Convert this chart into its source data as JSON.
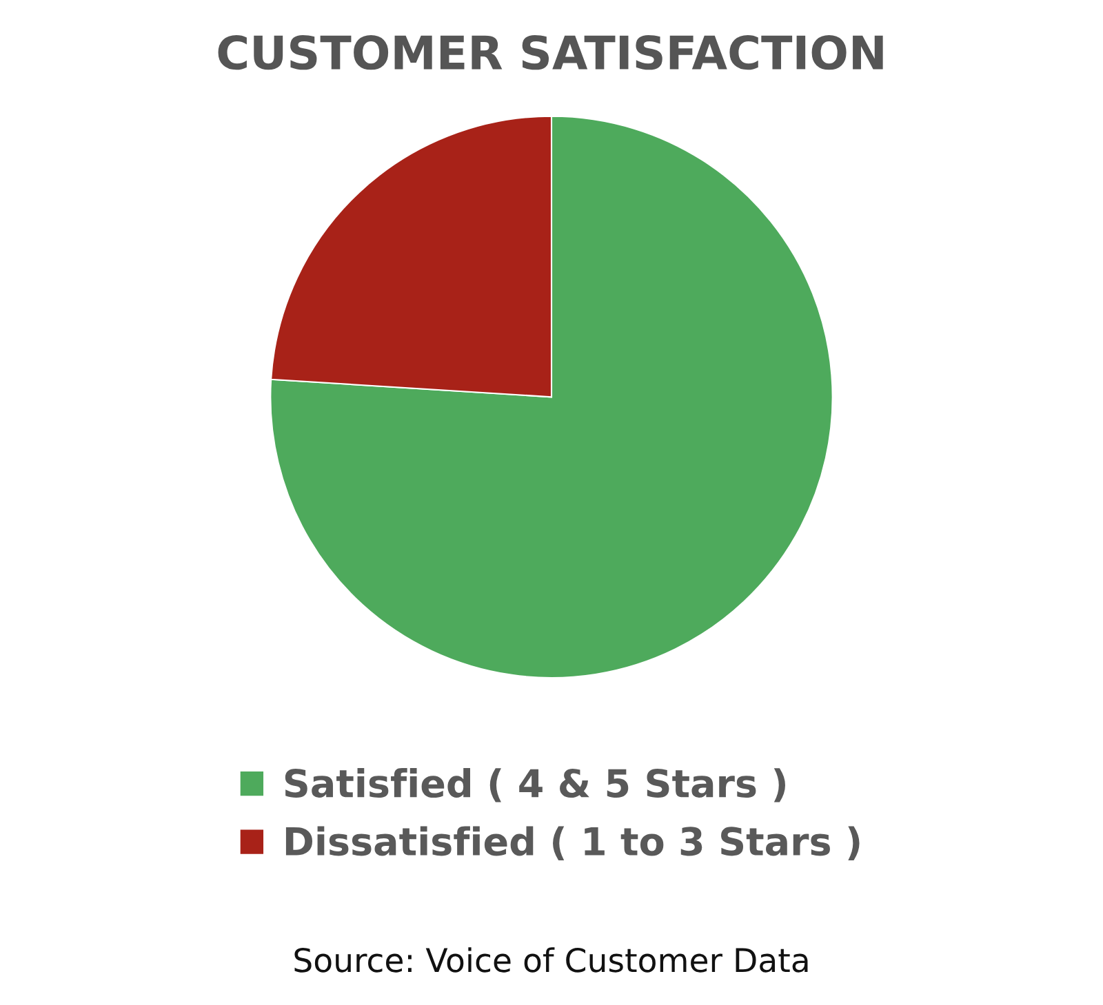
{
  "chart_data": {
    "type": "pie",
    "title": "CUSTOMER SATISFACTION",
    "categories": [
      "Satisfied ( 4 & 5 Stars )",
      "Dissatisfied ( 1 to 3 Stars )"
    ],
    "values": [
      76,
      24
    ],
    "colors": [
      "#4eaa5c",
      "#a82218"
    ],
    "legend": "bottom",
    "annotations": [
      "Source: Voice of Customer Data"
    ]
  }
}
